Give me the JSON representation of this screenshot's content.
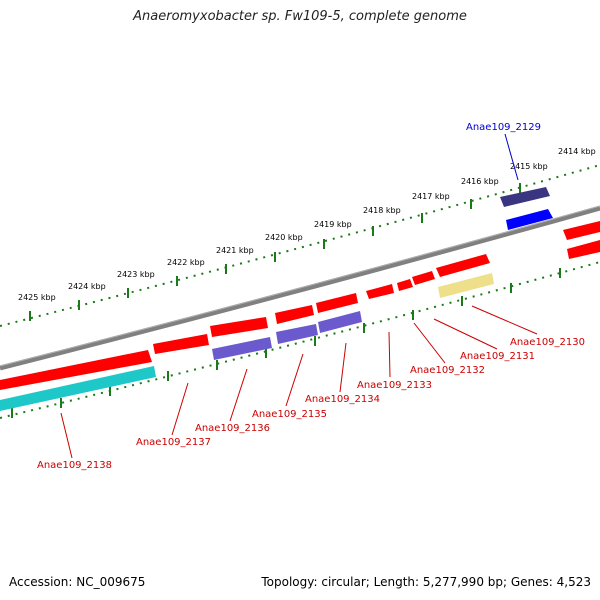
{
  "title": "Anaeromyxobacter sp. Fw109-5, complete genome",
  "footer": {
    "accession": "Accession: NC_009675",
    "topology": "Topology: circular; Length: 5,277,990 bp; Genes: 4,523"
  },
  "colors": {
    "backbone": "#808080",
    "tick": "#1a7a1a",
    "gene_red": "#ff0000",
    "gene_blue": "#0000ff",
    "gene_purple": "#6a5acd",
    "gene_navy": "#3a3580",
    "gene_cyan": "#1ec8c8",
    "gene_yellow": "#eee08a",
    "label_red": "#cc0000",
    "label_blue": "#0000cc"
  },
  "kbp_labels": [
    "2414 kbp",
    "2415 kbp",
    "2416 kbp",
    "2417 kbp",
    "2418 kbp",
    "2419 kbp",
    "2420 kbp",
    "2421 kbp",
    "2422 kbp",
    "2423 kbp",
    "2424 kbp",
    "2425 kbp"
  ],
  "gene_labels": {
    "g2129": "Anae109_2129",
    "g2130": "Anae109_2130",
    "g2131": "Anae109_2131",
    "g2132": "Anae109_2132",
    "g2133": "Anae109_2133",
    "g2134": "Anae109_2134",
    "g2135": "Anae109_2135",
    "g2136": "Anae109_2136",
    "g2137": "Anae109_2137",
    "g2138": "Anae109_2138"
  }
}
